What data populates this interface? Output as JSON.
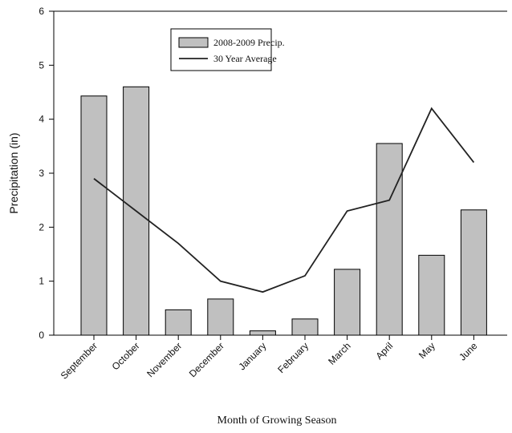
{
  "chart_data": {
    "type": "bar",
    "x_label": "Month of Growing Season",
    "y_label": "Precipitation (in)",
    "categories": [
      "September",
      "October",
      "November",
      "December",
      "January",
      "February",
      "March",
      "April",
      "May",
      "June"
    ],
    "series": [
      {
        "name": "2008-2009 Precip.",
        "type": "bar",
        "color": "#c0c0c0",
        "values": [
          4.43,
          4.6,
          0.47,
          0.67,
          0.08,
          0.3,
          1.22,
          3.55,
          1.48,
          2.32
        ]
      },
      {
        "name": "30 Year Average",
        "type": "line",
        "color": "#222222",
        "values": [
          2.9,
          2.3,
          1.7,
          1.0,
          0.8,
          1.1,
          2.3,
          2.5,
          4.2,
          3.2
        ]
      }
    ],
    "ylim": [
      0,
      6
    ],
    "yticks": [
      0,
      1,
      2,
      3,
      4,
      5,
      6
    ],
    "grid": false
  }
}
